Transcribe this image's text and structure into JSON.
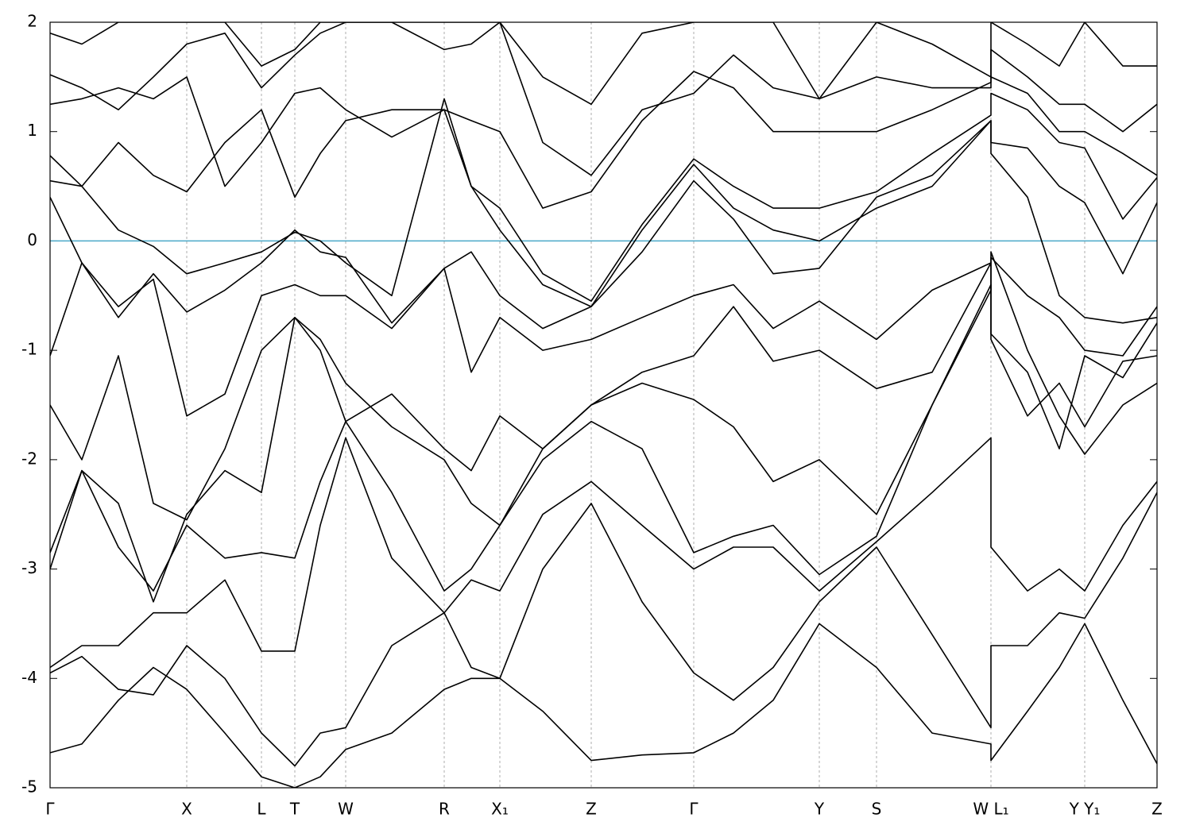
{
  "chart_data": {
    "type": "line",
    "x": [
      0,
      40,
      86,
      130,
      172,
      220,
      266,
      308,
      340,
      372,
      430,
      496,
      530,
      566,
      620,
      681,
      745,
      810,
      860,
      910,
      968,
      1040,
      1110,
      1184,
      1184,
      1230,
      1270,
      1302,
      1350,
      1393
    ],
    "series": [
      {
        "color": "#000000",
        "values": [
          -4.68,
          -4.6,
          -4.2,
          -3.9,
          -4.1,
          -4.5,
          -4.9,
          -5.0,
          -4.9,
          -4.65,
          -4.5,
          -4.1,
          -4.0,
          -4.0,
          -4.3,
          -4.75,
          -4.7,
          -4.68,
          -4.5,
          -4.2,
          -3.5,
          -3.9,
          -4.5,
          -4.6,
          -4.75,
          -4.3,
          -3.9,
          -3.5,
          -4.2,
          -4.78
        ]
      },
      {
        "color": "#000000",
        "values": [
          -3.95,
          -3.8,
          -4.1,
          -4.15,
          -3.7,
          -4.0,
          -4.5,
          -4.8,
          -4.5,
          -4.45,
          -3.7,
          -3.4,
          -3.9,
          -4.0,
          -3.0,
          -2.4,
          -3.3,
          -3.95,
          -4.2,
          -3.9,
          -3.3,
          -2.8,
          -3.6,
          -4.45,
          -3.7,
          -3.7,
          -3.4,
          -3.45,
          -2.9,
          -2.3
        ]
      },
      {
        "color": "#000000",
        "values": [
          -3.9,
          -3.7,
          -3.7,
          -3.4,
          -3.4,
          -3.1,
          -3.75,
          -3.75,
          -2.6,
          -1.8,
          -2.9,
          -3.4,
          -3.1,
          -3.2,
          -2.5,
          -2.2,
          -2.6,
          -3.0,
          -2.8,
          -2.8,
          -3.2,
          -2.75,
          -2.3,
          -1.8,
          -2.8,
          -3.2,
          -3.0,
          -3.2,
          -2.6,
          -2.2
        ]
      },
      {
        "color": "#000000",
        "values": [
          -3.0,
          -2.1,
          -2.8,
          -3.2,
          -2.6,
          -2.9,
          -2.85,
          -2.9,
          -2.2,
          -1.65,
          -2.3,
          -3.2,
          -3.0,
          -2.6,
          -2.0,
          -1.65,
          -1.9,
          -2.85,
          -2.7,
          -2.6,
          -3.05,
          -2.7,
          -1.5,
          -0.45,
          -0.1,
          -1.0,
          -1.6,
          -1.95,
          -1.5,
          -1.3
        ]
      },
      {
        "color": "#000000",
        "values": [
          -2.85,
          -2.1,
          -2.4,
          -3.3,
          -2.5,
          -2.1,
          -2.3,
          -0.7,
          -0.9,
          -1.3,
          -1.7,
          -2.0,
          -2.4,
          -2.6,
          -1.9,
          -1.5,
          -1.3,
          -1.45,
          -1.7,
          -2.2,
          -2.0,
          -2.5,
          -1.5,
          -0.4,
          -0.9,
          -1.6,
          -1.3,
          -1.7,
          -1.1,
          -1.05
        ]
      },
      {
        "color": "#000000",
        "values": [
          -1.5,
          -2.0,
          -1.05,
          -2.4,
          -2.55,
          -1.9,
          -1.0,
          -0.7,
          -1.0,
          -1.65,
          -1.4,
          -1.9,
          -2.1,
          -1.6,
          -1.9,
          -1.5,
          -1.2,
          -1.05,
          -0.6,
          -1.1,
          -1.0,
          -1.35,
          -1.2,
          -0.2,
          -0.85,
          -1.2,
          -1.9,
          -1.05,
          -1.25,
          -0.75
        ]
      },
      {
        "color": "#000000",
        "values": [
          -1.05,
          -0.2,
          -0.6,
          -0.35,
          -1.6,
          -1.4,
          -0.5,
          -0.4,
          -0.5,
          -0.5,
          -0.8,
          -0.25,
          -1.2,
          -0.7,
          -1.0,
          -0.9,
          -0.7,
          -0.5,
          -0.4,
          -0.8,
          -0.55,
          -0.9,
          -0.45,
          -0.2,
          -0.15,
          -0.5,
          -0.7,
          -1.0,
          -1.05,
          -0.6
        ]
      },
      {
        "color": "#000000",
        "values": [
          0.4,
          -0.2,
          -0.7,
          -0.3,
          -0.65,
          -0.45,
          -0.2,
          0.1,
          -0.1,
          -0.15,
          -0.75,
          -0.25,
          -0.1,
          -0.5,
          -0.8,
          -0.6,
          -0.1,
          0.55,
          0.2,
          -0.3,
          -0.25,
          0.4,
          0.6,
          1.1,
          0.8,
          0.4,
          -0.5,
          -0.7,
          -0.75,
          -0.7
        ]
      },
      {
        "color": "#000000",
        "values": [
          0.55,
          0.5,
          0.1,
          -0.05,
          -0.3,
          -0.2,
          -0.1,
          0.08,
          0.0,
          -0.2,
          -0.5,
          1.3,
          0.5,
          0.1,
          -0.4,
          -0.6,
          0.1,
          0.7,
          0.3,
          0.1,
          0.0,
          0.3,
          0.5,
          1.1,
          0.9,
          0.85,
          0.5,
          0.35,
          -0.3,
          0.35
        ]
      },
      {
        "color": "#000000",
        "values": [
          0.78,
          0.5,
          0.9,
          0.6,
          0.45,
          0.9,
          1.2,
          0.4,
          0.8,
          1.1,
          1.2,
          1.2,
          0.5,
          0.3,
          -0.3,
          -0.55,
          0.15,
          0.75,
          0.5,
          0.3,
          0.3,
          0.45,
          0.8,
          1.15,
          1.35,
          1.2,
          0.9,
          0.85,
          0.2,
          0.58
        ]
      },
      {
        "color": "#000000",
        "values": [
          1.25,
          1.3,
          1.4,
          1.3,
          1.5,
          0.5,
          0.9,
          1.35,
          1.4,
          1.2,
          0.95,
          1.2,
          1.1,
          1.0,
          0.3,
          0.45,
          1.1,
          1.55,
          1.4,
          1.0,
          1.0,
          1.0,
          1.2,
          1.45,
          1.5,
          1.35,
          1.0,
          1.0,
          0.8,
          0.6
        ]
      },
      {
        "color": "#000000",
        "values": [
          1.52,
          1.4,
          1.2,
          1.5,
          1.8,
          1.9,
          1.4,
          1.7,
          1.9,
          2.0,
          2.0,
          1.75,
          1.8,
          2.0,
          0.9,
          0.6,
          1.2,
          1.35,
          1.7,
          1.4,
          1.3,
          1.5,
          1.4,
          1.4,
          1.75,
          1.5,
          1.25,
          1.25,
          1.0,
          1.25
        ]
      },
      {
        "color": "#000000",
        "values": [
          1.9,
          1.8,
          2.0,
          2.0,
          2.0,
          2.0,
          1.6,
          1.75,
          2.0,
          2.0,
          2.0,
          2.0,
          2.0,
          2.0,
          1.5,
          1.25,
          1.9,
          2.0,
          2.0,
          2.0,
          1.3,
          2.0,
          1.8,
          1.5,
          2.0,
          1.8,
          1.6,
          2.0,
          1.6,
          1.6
        ]
      }
    ],
    "xlim": [
      0,
      1393
    ],
    "xticks": [
      {
        "value": 0,
        "label": "Γ"
      },
      {
        "value": 172,
        "label": "X"
      },
      {
        "value": 266,
        "label": "L"
      },
      {
        "value": 308,
        "label": "T"
      },
      {
        "value": 372,
        "label": "W"
      },
      {
        "value": 496,
        "label": "R"
      },
      {
        "value": 566,
        "label": "X₁"
      },
      {
        "value": 681,
        "label": "Z"
      },
      {
        "value": 810,
        "label": "Γ"
      },
      {
        "value": 968,
        "label": "Y"
      },
      {
        "value": 1040,
        "label": "S"
      },
      {
        "value": 1184,
        "label": "W L₁"
      },
      {
        "value": 1302,
        "label": "Y Y₁"
      },
      {
        "value": 1393,
        "label": "Z"
      }
    ],
    "ylim": [
      -5,
      2
    ],
    "yticks": [
      -5,
      -4,
      -3,
      -2,
      -1,
      0,
      1,
      2
    ],
    "grid": true,
    "fermi_level": 0,
    "fermi_color": "#4aa8c8"
  }
}
